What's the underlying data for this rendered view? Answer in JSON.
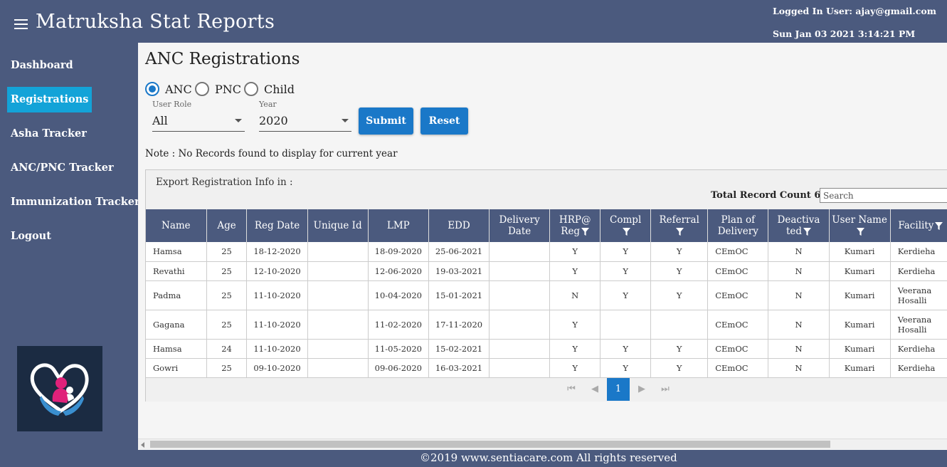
{
  "header": {
    "title": "Matruksha Stat Reports",
    "user": "Logged In User: ajay@gmail.com",
    "datetime": "Sun Jan 03 2021 3:14:21 PM"
  },
  "sidebar": {
    "items": [
      {
        "label": "Dashboard"
      },
      {
        "label": "Registrations",
        "active": true
      },
      {
        "label": "Asha Tracker"
      },
      {
        "label": "ANC/PNC Tracker"
      },
      {
        "label": "Immunization Tracker"
      },
      {
        "label": "Logout"
      }
    ]
  },
  "main": {
    "title": "ANC Registrations",
    "radios": [
      "ANC",
      "PNC",
      "Child"
    ],
    "selected_radio": "ANC",
    "user_role": {
      "label": "User Role",
      "value": "All"
    },
    "year": {
      "label": "Year",
      "value": "2020"
    },
    "submit_label": "Submit",
    "reset_label": "Reset",
    "note": "Note : No Records found to display for current year",
    "export_label": "Export Registration Info in :",
    "record_count_label": "Total Record Count 6",
    "search_placeholder": "Search"
  },
  "table": {
    "columns": [
      "Name",
      "Age",
      "Reg Date",
      "Unique Id",
      "LMP",
      "EDD",
      "Delivery Date",
      "HRP@ Reg",
      "Compl",
      "Referral",
      "Plan of Delivery",
      "Deactiva ted",
      "User Name",
      "Facility"
    ],
    "rows": [
      [
        "Hamsa",
        "25",
        "18-12-2020",
        "",
        "18-09-2020",
        "25-06-2021",
        "",
        "Y",
        "Y",
        "Y",
        "CEmOC",
        "N",
        "Kumari",
        "Kerdieha"
      ],
      [
        "Revathi",
        "25",
        "12-10-2020",
        "",
        "12-06-2020",
        "19-03-2021",
        "",
        "Y",
        "Y",
        "Y",
        "CEmOC",
        "N",
        "Kumari",
        "Kerdieha"
      ],
      [
        "Padma",
        "25",
        "11-10-2020",
        "",
        "10-04-2020",
        "15-01-2021",
        "",
        "N",
        "Y",
        "Y",
        "CEmOC",
        "N",
        "Kumari",
        "Veerana Hosalli"
      ],
      [
        "Gagana",
        "25",
        "11-10-2020",
        "",
        "11-02-2020",
        "17-11-2020",
        "",
        "Y",
        "",
        "",
        "CEmOC",
        "N",
        "Kumari",
        "Veerana Hosalli"
      ],
      [
        "Hamsa",
        "24",
        "11-10-2020",
        "",
        "11-05-2020",
        "15-02-2021",
        "",
        "Y",
        "Y",
        "Y",
        "CEmOC",
        "N",
        "Kumari",
        "Kerdieha"
      ],
      [
        "Gowri",
        "25",
        "09-10-2020",
        "",
        "09-06-2020",
        "16-03-2021",
        "",
        "Y",
        "Y",
        "Y",
        "CEmOC",
        "N",
        "Kumari",
        "Kerdieha"
      ]
    ],
    "current_page": "1"
  },
  "footer": {
    "text": "©2019 www.sentiacare.com All rights reserved"
  },
  "colors": {
    "header_bg": "#4b5a7e",
    "active_nav": "#13a3d8",
    "primary_button": "#1a78c8"
  }
}
